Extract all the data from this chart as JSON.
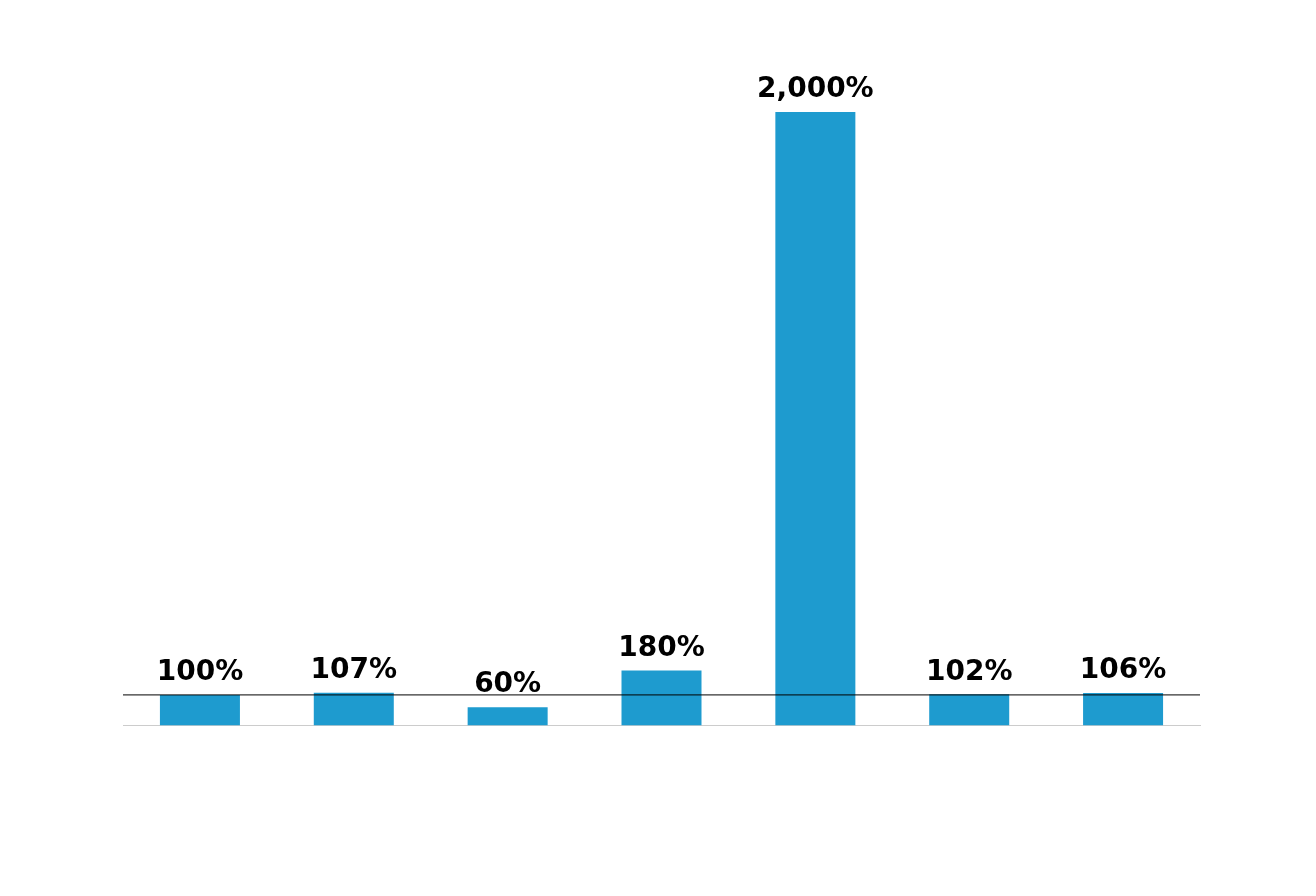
{
  "chart_data": {
    "type": "bar",
    "categories": [
      null,
      null,
      null,
      null,
      null,
      null,
      null
    ],
    "values": [
      100,
      107,
      60,
      180,
      2000,
      102,
      106
    ],
    "value_labels": [
      "100%",
      "107%",
      "60%",
      "180%",
      "2,000%",
      "102%",
      "106%"
    ],
    "color": "#1e9bcf",
    "ylim": [
      0,
      2000
    ],
    "grid": false,
    "legend": false,
    "ref_lines": [
      {
        "axis": "y",
        "value": 100,
        "color": "#000000"
      }
    ]
  }
}
